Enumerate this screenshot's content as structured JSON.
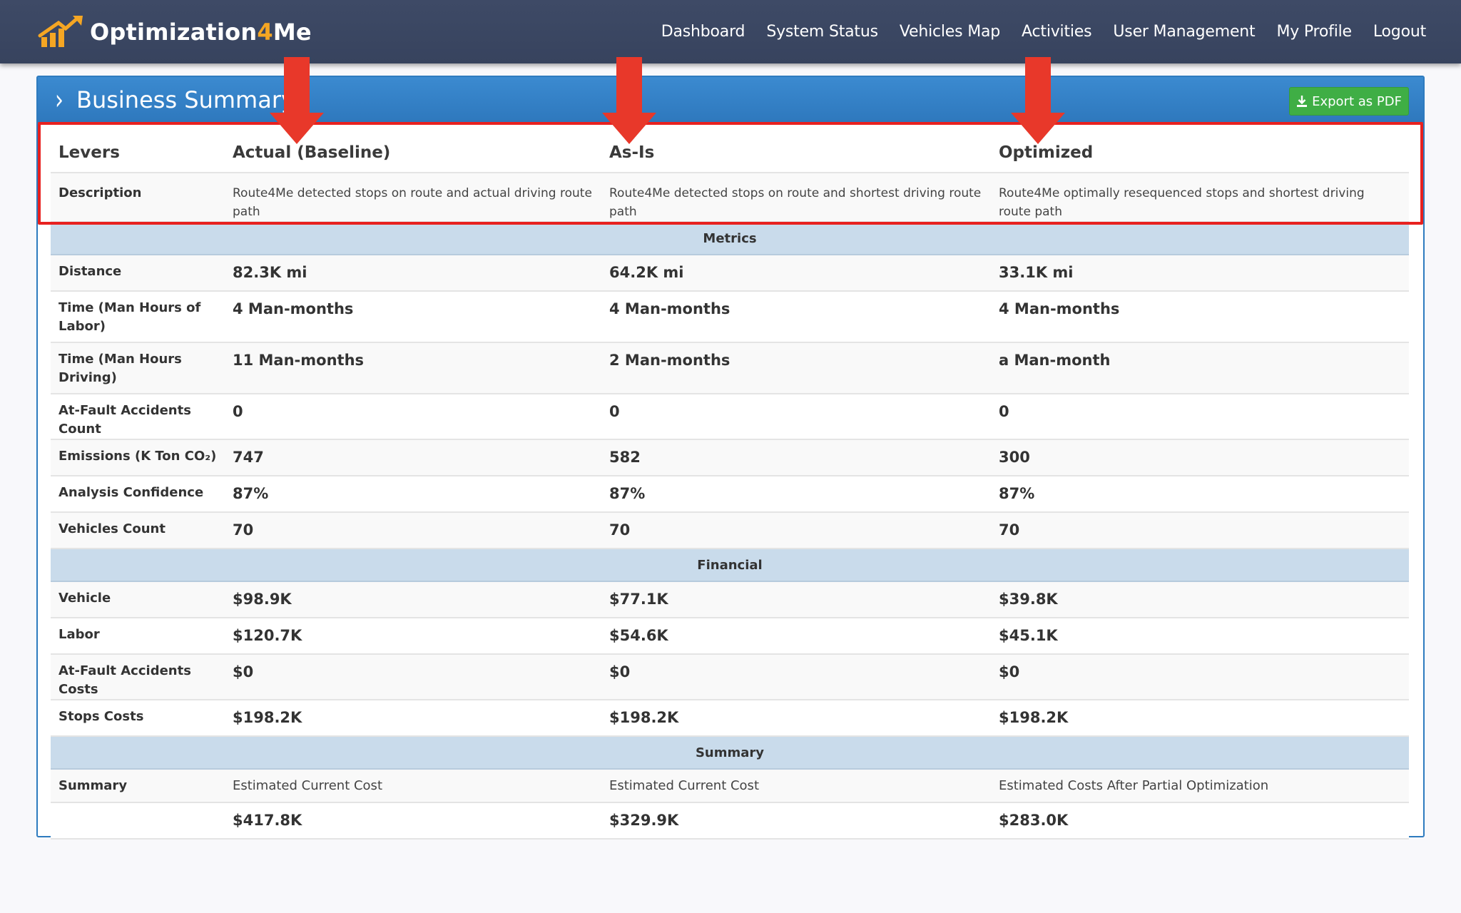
{
  "header": {
    "logo_text_a": "Optimization",
    "logo_text_b": "4",
    "logo_text_c": "Me",
    "nav": [
      {
        "label": "Dashboard"
      },
      {
        "label": "System Status"
      },
      {
        "label": "Vehicles Map"
      },
      {
        "label": "Activities"
      },
      {
        "label": "User Management"
      },
      {
        "label": "My Profile"
      },
      {
        "label": "Logout"
      }
    ]
  },
  "panel": {
    "title": "Business Summary",
    "export_label": "Export as PDF"
  },
  "table": {
    "columns": [
      "Levers",
      "Actual (Baseline)",
      "As-Is",
      "Optimized"
    ],
    "description": {
      "label": "Description",
      "values": [
        "Route4Me detected stops on route and actual driving route path",
        "Route4Me detected stops on route and shortest driving route path",
        "Route4Me optimally resequenced stops and shortest driving route path"
      ]
    },
    "sections": {
      "metrics": "Metrics",
      "financial": "Financial",
      "summary": "Summary"
    },
    "metrics": [
      {
        "label": "Distance",
        "values": [
          "82.3K mi",
          "64.2K mi",
          "33.1K mi"
        ]
      },
      {
        "label": "Time (Man Hours of Labor)",
        "values": [
          "4 Man-months",
          "4 Man-months",
          "4 Man-months"
        ]
      },
      {
        "label": "Time (Man Hours Driving)",
        "values": [
          "11 Man-months",
          "2 Man-months",
          "a Man-month"
        ]
      },
      {
        "label": "At-Fault Accidents Count",
        "values": [
          "0",
          "0",
          "0"
        ]
      },
      {
        "label": "Emissions (K Ton CO₂)",
        "values": [
          "747",
          "582",
          "300"
        ]
      },
      {
        "label": "Analysis Confidence",
        "values": [
          "87%",
          "87%",
          "87%"
        ]
      },
      {
        "label": "Vehicles Count",
        "values": [
          "70",
          "70",
          "70"
        ]
      }
    ],
    "financial": [
      {
        "label": "Vehicle",
        "values": [
          "$98.9K",
          "$77.1K",
          "$39.8K"
        ]
      },
      {
        "label": "Labor",
        "values": [
          "$120.7K",
          "$54.6K",
          "$45.1K"
        ]
      },
      {
        "label": "At-Fault Accidents Costs",
        "values": [
          "$0",
          "$0",
          "$0"
        ]
      },
      {
        "label": "Stops Costs",
        "values": [
          "$198.2K",
          "$198.2K",
          "$198.2K"
        ]
      }
    ],
    "summary": [
      {
        "label": "Summary",
        "values": [
          "Estimated Current Cost",
          "Estimated Current Cost",
          "Estimated Costs After Partial Optimization"
        ]
      },
      {
        "label": "",
        "values": [
          "$417.8K",
          "$329.9K",
          "$283.0K"
        ]
      }
    ]
  },
  "colors": {
    "nav_bg": "#3e4a66",
    "panel_header": "#2e78bd",
    "export_button": "#3fae45",
    "section_bg": "#c9dbeb",
    "highlight": "#e8211f",
    "logo_accent": "#f5a623"
  },
  "icons": {
    "logo": "chart-arrow-logo",
    "panel_chevron": "chevron-right-icon",
    "export": "download-icon",
    "annotations": "red-down-arrow"
  }
}
